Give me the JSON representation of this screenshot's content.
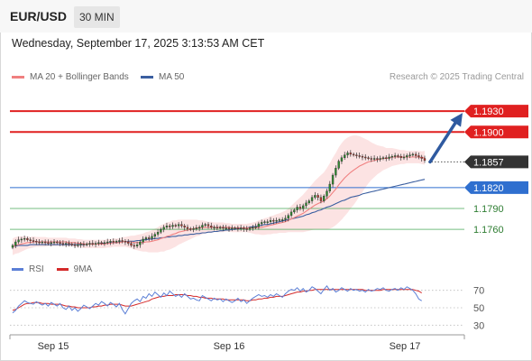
{
  "header": {
    "symbol": "EUR/USD",
    "timeframe": "30 MIN"
  },
  "datetime": "Wednesday, September 17, 2025 3:13:53 AM CET",
  "legend": {
    "ma20_label": "MA 20 + Bollinger Bands",
    "ma50_label": "MA 50",
    "credit": "Research © 2025 Trading Central"
  },
  "rsi_legend": {
    "rsi_label": "RSI",
    "ma_label": "9MA"
  },
  "colors": {
    "resistance": "#e02020",
    "support_blue": "#2f6fcf",
    "support_green": "#3aa24a",
    "ma20": "#f08080",
    "ma50": "#3b5fa0",
    "band": "#fbdcdc",
    "candle_up": "#2e8b2e",
    "candle_down": "#c0392b",
    "arrow": "#2f5aa0",
    "current": "#333333",
    "rsi": "#5b7fd6",
    "rsi_ma": "#d42a2a"
  },
  "chart_data": {
    "type": "candlestick",
    "x_ticks": [
      "Sep 15",
      "Sep 16",
      "Sep 17"
    ],
    "ylim": [
      1.172,
      1.196
    ],
    "levels": [
      {
        "value": 1.193,
        "label": "1.1930",
        "kind": "resistance"
      },
      {
        "value": 1.19,
        "label": "1.1900",
        "kind": "resistance"
      },
      {
        "value": 1.1857,
        "label": "1.1857",
        "kind": "current"
      },
      {
        "value": 1.182,
        "label": "1.1820",
        "kind": "pivot"
      },
      {
        "value": 1.179,
        "label": "1.1790",
        "kind": "support"
      },
      {
        "value": 1.176,
        "label": "1.1760",
        "kind": "support"
      }
    ],
    "close": [
      1.1737,
      1.1742,
      1.1745,
      1.1746,
      1.1747,
      1.1745,
      1.1744,
      1.1743,
      1.1742,
      1.1741,
      1.1742,
      1.1741,
      1.174,
      1.1741,
      1.1742,
      1.1741,
      1.174,
      1.1739,
      1.174,
      1.1739,
      1.1738,
      1.1737,
      1.1738,
      1.1739,
      1.1738,
      1.1739,
      1.174,
      1.1739,
      1.174,
      1.1741,
      1.174,
      1.1741,
      1.1742,
      1.1743,
      1.1742,
      1.1743,
      1.1744,
      1.1743,
      1.1742,
      1.174,
      1.1737,
      1.1736,
      1.1738,
      1.1742,
      1.1746,
      1.1748,
      1.1747,
      1.175,
      1.1753,
      1.1756,
      1.176,
      1.1763,
      1.1765,
      1.1764,
      1.1766,
      1.1765,
      1.1767,
      1.1765,
      1.1763,
      1.1761,
      1.176,
      1.1761,
      1.1762,
      1.1763,
      1.1766,
      1.1767,
      1.1765,
      1.1763,
      1.1763,
      1.1762,
      1.1763,
      1.1762,
      1.1762,
      1.1761,
      1.1762,
      1.1762,
      1.1761,
      1.1762,
      1.1761,
      1.176,
      1.1762,
      1.1763,
      1.1764,
      1.1768,
      1.177,
      1.1771,
      1.1771,
      1.1773,
      1.1772,
      1.1773,
      1.1774,
      1.1774,
      1.1776,
      1.178,
      1.1785,
      1.1788,
      1.1792,
      1.179,
      1.1794,
      1.1798,
      1.1801,
      1.1806,
      1.1809,
      1.1806,
      1.1801,
      1.1808,
      1.1815,
      1.1825,
      1.1838,
      1.1848,
      1.1858,
      1.1863,
      1.1867,
      1.187,
      1.1868,
      1.1867,
      1.1866,
      1.1865,
      1.1864,
      1.1863,
      1.1862,
      1.1861,
      1.1862,
      1.1861,
      1.1862,
      1.1863,
      1.1862,
      1.1864,
      1.1865,
      1.1866,
      1.1865,
      1.1863,
      1.1864,
      1.1866,
      1.1867,
      1.1868,
      1.1866,
      1.1864,
      1.1862,
      1.1859
    ],
    "ma20": [
      1.1735,
      1.1737,
      1.1738,
      1.1739,
      1.174,
      1.1741,
      1.1741,
      1.1742,
      1.1742,
      1.1742,
      1.1742,
      1.1742,
      1.1742,
      1.1742,
      1.1742,
      1.1742,
      1.1742,
      1.1742,
      1.1742,
      1.1741,
      1.1741,
      1.1741,
      1.174,
      1.174,
      1.1739,
      1.1739,
      1.1739,
      1.1739,
      1.1739,
      1.1739,
      1.1739,
      1.1739,
      1.174,
      1.174,
      1.1741,
      1.1741,
      1.1741,
      1.1742,
      1.1742,
      1.1742,
      1.1742,
      1.1741,
      1.1741,
      1.1741,
      1.1741,
      1.1742,
      1.1742,
      1.1743,
      1.1744,
      1.1745,
      1.1747,
      1.1748,
      1.175,
      1.1751,
      1.1753,
      1.1754,
      1.1756,
      1.1757,
      1.1758,
      1.1759,
      1.176,
      1.1761,
      1.1762,
      1.1762,
      1.1763,
      1.1763,
      1.1763,
      1.1763,
      1.1763,
      1.1763,
      1.1763,
      1.1763,
      1.1763,
      1.1763,
      1.1762,
      1.1762,
      1.1762,
      1.1762,
      1.1762,
      1.1762,
      1.1762,
      1.1762,
      1.1762,
      1.1763,
      1.1763,
      1.1764,
      1.1765,
      1.1766,
      1.1767,
      1.1768,
      1.1769,
      1.177,
      1.1771,
      1.1773,
      1.1775,
      1.1777,
      1.1779,
      1.1781,
      1.1783,
      1.1786,
      1.1789,
      1.1792,
      1.1795,
      1.1797,
      1.1799,
      1.1801,
      1.1804,
      1.1808,
      1.1813,
      1.1818,
      1.1824,
      1.1829,
      1.1834,
      1.1838,
      1.1842,
      1.1845,
      1.1848,
      1.1851,
      1.1853,
      1.1855,
      1.1857,
      1.1858,
      1.1859,
      1.186,
      1.1861,
      1.1862,
      1.1862,
      1.1863,
      1.1864,
      1.1864,
      1.1864,
      1.1864,
      1.1864,
      1.1864,
      1.1864,
      1.1864,
      1.1864,
      1.1864,
      1.1863,
      1.1863
    ],
    "bb_width": [
      0.0012,
      0.0012,
      0.0012,
      0.0011,
      0.001,
      0.0009,
      0.0008,
      0.0008,
      0.0007,
      0.0007,
      0.0007,
      0.0007,
      0.0006,
      0.0006,
      0.0006,
      0.0006,
      0.0006,
      0.0006,
      0.0006,
      0.0006,
      0.0006,
      0.0006,
      0.0006,
      0.0006,
      0.0006,
      0.0006,
      0.0006,
      0.0006,
      0.0006,
      0.0006,
      0.0006,
      0.0006,
      0.0006,
      0.0006,
      0.0006,
      0.0006,
      0.0006,
      0.0007,
      0.0007,
      0.0008,
      0.0009,
      0.001,
      0.0011,
      0.0012,
      0.0013,
      0.0014,
      0.0015,
      0.0016,
      0.0017,
      0.0018,
      0.0019,
      0.002,
      0.002,
      0.002,
      0.002,
      0.0019,
      0.0018,
      0.0017,
      0.0016,
      0.0015,
      0.0014,
      0.0013,
      0.0012,
      0.0011,
      0.001,
      0.0009,
      0.0008,
      0.0008,
      0.0007,
      0.0007,
      0.0007,
      0.0007,
      0.0006,
      0.0006,
      0.0006,
      0.0006,
      0.0006,
      0.0006,
      0.0006,
      0.0006,
      0.0007,
      0.0008,
      0.0009,
      0.001,
      0.0011,
      0.0012,
      0.0012,
      0.0013,
      0.0013,
      0.0014,
      0.0014,
      0.0015,
      0.0016,
      0.0017,
      0.0019,
      0.0021,
      0.0023,
      0.0025,
      0.0027,
      0.0029,
      0.0031,
      0.0033,
      0.0035,
      0.0037,
      0.0039,
      0.0041,
      0.0044,
      0.0047,
      0.005,
      0.0052,
      0.0054,
      0.0055,
      0.0055,
      0.0054,
      0.0052,
      0.005,
      0.0047,
      0.0043,
      0.0039,
      0.0035,
      0.0031,
      0.0027,
      0.0024,
      0.0021,
      0.0019,
      0.0017,
      0.0015,
      0.0014,
      0.0013,
      0.0012,
      0.0011,
      0.001,
      0.001,
      0.0009,
      0.0009,
      0.0009,
      0.0009,
      0.0009,
      0.0009,
      0.001,
      0.001,
      0.0011
    ],
    "ma50": [
      1.1736,
      1.1736,
      1.1737,
      1.1737,
      1.1737,
      1.1737,
      1.1738,
      1.1738,
      1.1738,
      1.1738,
      1.1738,
      1.1738,
      1.1738,
      1.1738,
      1.1738,
      1.1738,
      1.1738,
      1.1738,
      1.1738,
      1.1738,
      1.1738,
      1.1738,
      1.1738,
      1.1738,
      1.1738,
      1.1739,
      1.1739,
      1.1739,
      1.1739,
      1.1739,
      1.174,
      1.174,
      1.174,
      1.1741,
      1.1741,
      1.1741,
      1.1742,
      1.1742,
      1.1742,
      1.1743,
      1.1743,
      1.1743,
      1.1744,
      1.1744,
      1.1745,
      1.1745,
      1.1746,
      1.1746,
      1.1747,
      1.1747,
      1.1748,
      1.1748,
      1.1749,
      1.1749,
      1.175,
      1.175,
      1.1751,
      1.1751,
      1.1752,
      1.1752,
      1.1753,
      1.1753,
      1.1754,
      1.1754,
      1.1755,
      1.1755,
      1.1756,
      1.1756,
      1.1757,
      1.1757,
      1.1758,
      1.1758,
      1.1759,
      1.1759,
      1.176,
      1.176,
      1.1761,
      1.1761,
      1.1762,
      1.1762,
      1.1763,
      1.1764,
      1.1764,
      1.1765,
      1.1766,
      1.1767,
      1.1767,
      1.1768,
      1.1769,
      1.177,
      1.1771,
      1.1772,
      1.1773,
      1.1774,
      1.1775,
      1.1776,
      1.1777,
      1.1778,
      1.1779,
      1.1781,
      1.1782,
      1.1784,
      1.1785,
      1.1787,
      1.1788,
      1.179,
      1.1792,
      1.1793,
      1.1795,
      1.1797,
      1.1799,
      1.1801,
      1.1802,
      1.1804,
      1.1806,
      1.1807,
      1.1808,
      1.1809,
      1.1811,
      1.1812,
      1.1813,
      1.1814,
      1.1815,
      1.1816,
      1.1817,
      1.1818,
      1.1819,
      1.182,
      1.1821,
      1.1822,
      1.1823,
      1.1824,
      1.1825,
      1.1826,
      1.1827,
      1.1828,
      1.1829,
      1.183,
      1.1831,
      1.1832
    ],
    "projection": {
      "from": 1.1857,
      "to": 1.193
    },
    "rsi": {
      "ylim": [
        20,
        80
      ],
      "ticks": [
        70,
        50,
        30
      ],
      "rsi": [
        44,
        47,
        52,
        55,
        58,
        56,
        55,
        54,
        57,
        55,
        53,
        55,
        52,
        56,
        54,
        52,
        55,
        50,
        48,
        52,
        47,
        50,
        46,
        49,
        53,
        51,
        49,
        52,
        55,
        53,
        57,
        55,
        52,
        56,
        54,
        51,
        55,
        48,
        43,
        49,
        55,
        58,
        60,
        57,
        63,
        61,
        66,
        63,
        68,
        65,
        62,
        67,
        64,
        69,
        66,
        63,
        65,
        62,
        66,
        63,
        60,
        61,
        59,
        58,
        64,
        62,
        60,
        58,
        61,
        59,
        60,
        57,
        60,
        58,
        56,
        58,
        61,
        57,
        59,
        55,
        58,
        61,
        63,
        65,
        63,
        64,
        62,
        65,
        63,
        66,
        64,
        62,
        66,
        69,
        71,
        70,
        73,
        69,
        72,
        68,
        70,
        74,
        72,
        69,
        66,
        71,
        75,
        70,
        72,
        68,
        70,
        73,
        71,
        69,
        72,
        70,
        71,
        69,
        70,
        68,
        71,
        69,
        70,
        72,
        71,
        73,
        70,
        69,
        71,
        72,
        70,
        73,
        71,
        74,
        72,
        70,
        66,
        60,
        58
      ],
      "rsi_ma": [
        47,
        48,
        50,
        52,
        54,
        55,
        55,
        56,
        56,
        56,
        55,
        55,
        55,
        54,
        54,
        54,
        54,
        53,
        52,
        52,
        51,
        51,
        50,
        50,
        50,
        50,
        50,
        51,
        51,
        52,
        52,
        53,
        53,
        54,
        54,
        54,
        54,
        53,
        52,
        52,
        52,
        53,
        54,
        55,
        56,
        57,
        58,
        60,
        61,
        62,
        63,
        63,
        64,
        64,
        64,
        65,
        65,
        65,
        65,
        64,
        64,
        63,
        63,
        62,
        62,
        61,
        61,
        61,
        60,
        60,
        60,
        60,
        59,
        59,
        59,
        59,
        59,
        59,
        59,
        58,
        58,
        59,
        59,
        60,
        60,
        61,
        61,
        62,
        62,
        63,
        63,
        63,
        64,
        65,
        66,
        67,
        68,
        68,
        69,
        69,
        70,
        70,
        71,
        71,
        71,
        71,
        71,
        71,
        71,
        71,
        71,
        71,
        71,
        71,
        71,
        71,
        71,
        71,
        71,
        70,
        70,
        70,
        70,
        70,
        70,
        71,
        71,
        71,
        71,
        71,
        71,
        71,
        71,
        71,
        71,
        71,
        70,
        69,
        67
      ]
    }
  },
  "x_ticks_pos": [
    0.08,
    0.48,
    0.88
  ]
}
